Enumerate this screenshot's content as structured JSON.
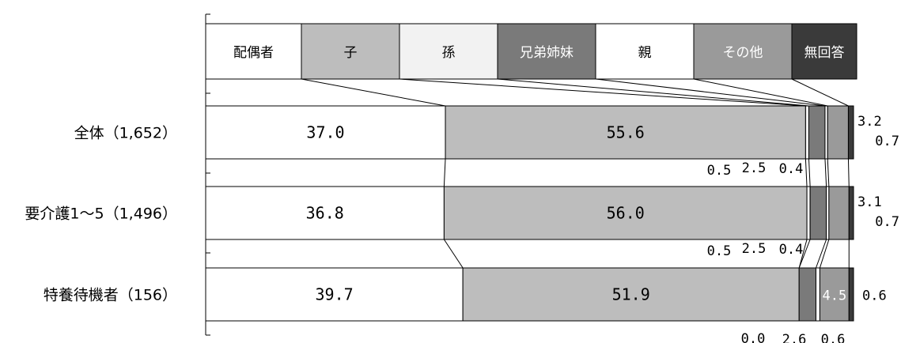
{
  "chart_data": {
    "type": "bar",
    "orientation": "horizontal",
    "stacked": true,
    "percent": true,
    "legend_position": "top",
    "legend": [
      {
        "label": "配偶者",
        "color": "#ffffff",
        "text_color": "#000000"
      },
      {
        "label": "子",
        "color": "#bdbdbd",
        "text_color": "#000000"
      },
      {
        "label": "孫",
        "color": "#f2f2f2",
        "text_color": "#000000"
      },
      {
        "label": "兄弟姉妹",
        "color": "#7a7a7a",
        "text_color": "#ffffff"
      },
      {
        "label": "親",
        "color": "#ffffff",
        "text_color": "#000000"
      },
      {
        "label": "その他",
        "color": "#9a9a9a",
        "text_color": "#ffffff"
      },
      {
        "label": "無回答",
        "color": "#3a3a3a",
        "text_color": "#ffffff"
      }
    ],
    "categories": [
      "全体（1,652）",
      "要介護1～5（1,496）",
      "特養待機者（156）"
    ],
    "series": [
      {
        "name": "配偶者",
        "values": [
          37.0,
          36.8,
          39.7
        ]
      },
      {
        "name": "子",
        "values": [
          55.6,
          56.0,
          51.9
        ]
      },
      {
        "name": "孫",
        "values": [
          0.5,
          0.5,
          0.0
        ]
      },
      {
        "name": "兄弟姉妹",
        "values": [
          2.5,
          2.5,
          2.6
        ]
      },
      {
        "name": "親",
        "values": [
          0.4,
          0.4,
          0.6
        ]
      },
      {
        "name": "その他",
        "values": [
          3.2,
          3.1,
          4.5
        ]
      },
      {
        "name": "無回答",
        "values": [
          0.7,
          0.7,
          0.6
        ]
      }
    ],
    "value_labels": [
      [
        "37.0",
        "55.6",
        "0.5",
        "2.5",
        "0.4",
        "3.2",
        "0.7"
      ],
      [
        "36.8",
        "56.0",
        "0.5",
        "2.5",
        "0.4",
        "3.1",
        "0.7"
      ],
      [
        "39.7",
        "51.9",
        "0.0",
        "2.6",
        "0.6",
        "4.5",
        "0.6"
      ]
    ]
  }
}
